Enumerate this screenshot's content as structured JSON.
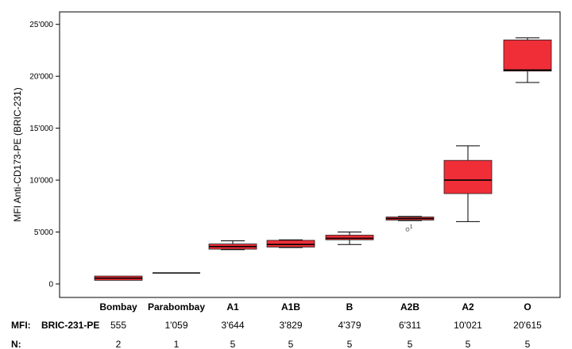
{
  "chart_data": {
    "type": "box",
    "ylabel": "MFI Anti-CD173-PE (BRIC-231)",
    "ylim": [
      -1300,
      26200
    ],
    "yticks": [
      0,
      5000,
      10000,
      15000,
      20000,
      25000
    ],
    "ytick_labels": [
      "0",
      "5'000",
      "10'000",
      "15'000",
      "20'000",
      "25'000"
    ],
    "grid": false,
    "box_color": "#ef2e37",
    "categories": [
      "Bombay",
      "Parabombay",
      "A1",
      "A1B",
      "B",
      "A2B",
      "A2",
      "O"
    ],
    "boxes": [
      {
        "min": 350,
        "q1": 350,
        "median": 555,
        "q3": 760,
        "max": 760
      },
      {
        "min": 1059,
        "q1": 1059,
        "median": 1059,
        "q3": 1059,
        "max": 1059
      },
      {
        "min": 3300,
        "q1": 3350,
        "median": 3600,
        "q3": 3850,
        "max": 4150
      },
      {
        "min": 3500,
        "q1": 3550,
        "median": 3800,
        "q3": 4200,
        "max": 4250
      },
      {
        "min": 3800,
        "q1": 4250,
        "median": 4400,
        "q3": 4700,
        "max": 5000
      },
      {
        "min": 6100,
        "q1": 6150,
        "median": 6300,
        "q3": 6450,
        "max": 6500
      },
      {
        "min": 6000,
        "q1": 8700,
        "median": 10000,
        "q3": 11900,
        "max": 13300
      },
      {
        "min": 19400,
        "q1": 20500,
        "median": 20600,
        "q3": 23500,
        "max": 23700
      }
    ],
    "outliers": [
      {
        "category": "A2B",
        "value": 5250,
        "label": "1"
      }
    ],
    "table": {
      "mfi_label": "MFI:",
      "mfi_sublabel": "BRIC-231-PE",
      "mfi_values": [
        "555",
        "1'059",
        "3'644",
        "3'829",
        "4'379",
        "6'311",
        "10'021",
        "20'615"
      ],
      "n_label": "N:",
      "n_values": [
        "2",
        "1",
        "5",
        "5",
        "5",
        "5",
        "5",
        "5"
      ]
    }
  }
}
